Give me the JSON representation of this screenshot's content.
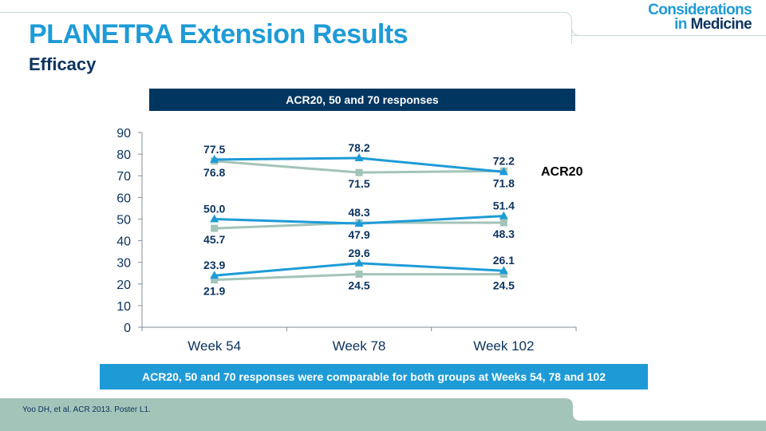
{
  "header": {
    "title": "PLANETRA Extension Results",
    "subtitle": "Efficacy",
    "logo_line1": "Considerations",
    "logo_line2_prefix": "in",
    "logo_line2_suffix": "Medicine"
  },
  "colors": {
    "primary_blue": "#1e9bd7",
    "navy": "#013660",
    "gray_green": "#a3c4b8",
    "text_navy": "#0d3460"
  },
  "chart_header": "ACR20, 50 and 70 responses",
  "conclusion": "ACR20, 50 and 70 responses were comparable for both groups at Weeks 54, 78 and 102",
  "footer": {
    "citation": "Yoo DH, et al. ACR 2013. Poster L1."
  },
  "chart_data": {
    "type": "line",
    "title": "ACR20, 50 and 70 responses",
    "xlabel": "",
    "ylabel": "",
    "categories": [
      "Week 54",
      "Week 78",
      "Week 102"
    ],
    "ylim": [
      0,
      90
    ],
    "yticks": [
      0,
      10,
      20,
      30,
      40,
      50,
      60,
      70,
      80,
      90
    ],
    "grid": false,
    "annotations": [
      "ACR20"
    ],
    "series": [
      {
        "name": "ACR20 (triangle, blue)",
        "group": "ACR20",
        "marker": "triangle",
        "color": "#1e9bd7",
        "values": [
          77.5,
          78.2,
          71.8
        ]
      },
      {
        "name": "ACR20 (square, gray)",
        "group": "ACR20",
        "marker": "square",
        "color": "#a3c4b8",
        "values": [
          76.8,
          71.5,
          72.2
        ]
      },
      {
        "name": "ACR50 (triangle, blue)",
        "group": "ACR50",
        "marker": "triangle",
        "color": "#1e9bd7",
        "values": [
          50.0,
          47.9,
          51.4
        ]
      },
      {
        "name": "ACR50 (square, gray)",
        "group": "ACR50",
        "marker": "square",
        "color": "#a3c4b8",
        "values": [
          45.7,
          48.3,
          48.3
        ]
      },
      {
        "name": "ACR70 (triangle, blue)",
        "group": "ACR70",
        "marker": "triangle",
        "color": "#1e9bd7",
        "values": [
          23.9,
          29.6,
          26.1
        ]
      },
      {
        "name": "ACR70 (square, gray)",
        "group": "ACR70",
        "marker": "square",
        "color": "#a3c4b8",
        "values": [
          21.9,
          24.5,
          24.5
        ]
      }
    ],
    "data_labels": [
      {
        "series": 0,
        "texts": [
          "77.5",
          "78.2",
          "71.8"
        ],
        "pos": [
          "above",
          "above",
          "below"
        ]
      },
      {
        "series": 1,
        "texts": [
          "76.8",
          "71.5",
          "72.2"
        ],
        "pos": [
          "below",
          "below",
          "above"
        ]
      },
      {
        "series": 2,
        "texts": [
          "50.0",
          "47.9",
          "51.4"
        ],
        "pos": [
          "above",
          "below",
          "above"
        ]
      },
      {
        "series": 3,
        "texts": [
          "45.7",
          "48.3",
          "48.3"
        ],
        "pos": [
          "below",
          "above",
          "below"
        ]
      },
      {
        "series": 4,
        "texts": [
          "23.9",
          "29.6",
          "26.1"
        ],
        "pos": [
          "above",
          "above",
          "above"
        ]
      },
      {
        "series": 5,
        "texts": [
          "21.9",
          "24.5",
          "24.5"
        ],
        "pos": [
          "below",
          "below",
          "below"
        ]
      }
    ]
  }
}
